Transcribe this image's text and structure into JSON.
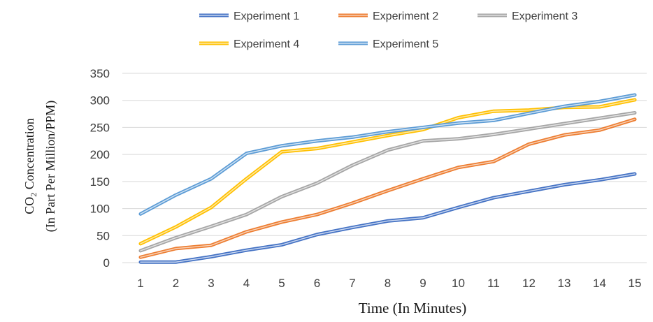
{
  "chart_data": {
    "type": "line",
    "xlabel": "Time (In Minutes)",
    "ylabel": {
      "line1_main": "CO",
      "line1_sub": "2",
      "line1_rest": " Concentration",
      "line2": "(In Part Per Million/PPM)"
    },
    "x": [
      1,
      2,
      3,
      4,
      5,
      6,
      7,
      8,
      9,
      10,
      11,
      12,
      13,
      14,
      15
    ],
    "ylim": [
      0,
      350
    ],
    "yticks": [
      0,
      50,
      100,
      150,
      200,
      250,
      300,
      350
    ],
    "grid": true,
    "legend_position": "top",
    "series": [
      {
        "name": "Experiment 1",
        "color": "#4472c4",
        "light": "#c9d7f0",
        "values": [
          1,
          1,
          11,
          23,
          33,
          52,
          65,
          77,
          83,
          102,
          120,
          132,
          144,
          153,
          164
        ]
      },
      {
        "name": "Experiment 2",
        "color": "#ed7d31",
        "light": "#f8d2b7",
        "values": [
          10,
          26,
          32,
          57,
          75,
          89,
          110,
          133,
          155,
          176,
          187,
          219,
          236,
          245,
          265
        ]
      },
      {
        "name": "Experiment 3",
        "color": "#a5a5a5",
        "light": "#e2e2e2",
        "values": [
          22,
          46,
          67,
          89,
          122,
          147,
          180,
          208,
          225,
          229,
          237,
          247,
          257,
          267,
          277
        ]
      },
      {
        "name": "Experiment 4",
        "color": "#ffc000",
        "light": "#ffe9a8",
        "values": [
          35,
          66,
          102,
          155,
          205,
          211,
          223,
          235,
          246,
          268,
          280,
          282,
          287,
          288,
          301
        ]
      },
      {
        "name": "Experiment 5",
        "color": "#5b9bd5",
        "light": "#cfe2f3",
        "values": [
          90,
          125,
          155,
          202,
          216,
          225,
          232,
          242,
          250,
          258,
          263,
          276,
          289,
          298,
          310
        ]
      }
    ]
  }
}
